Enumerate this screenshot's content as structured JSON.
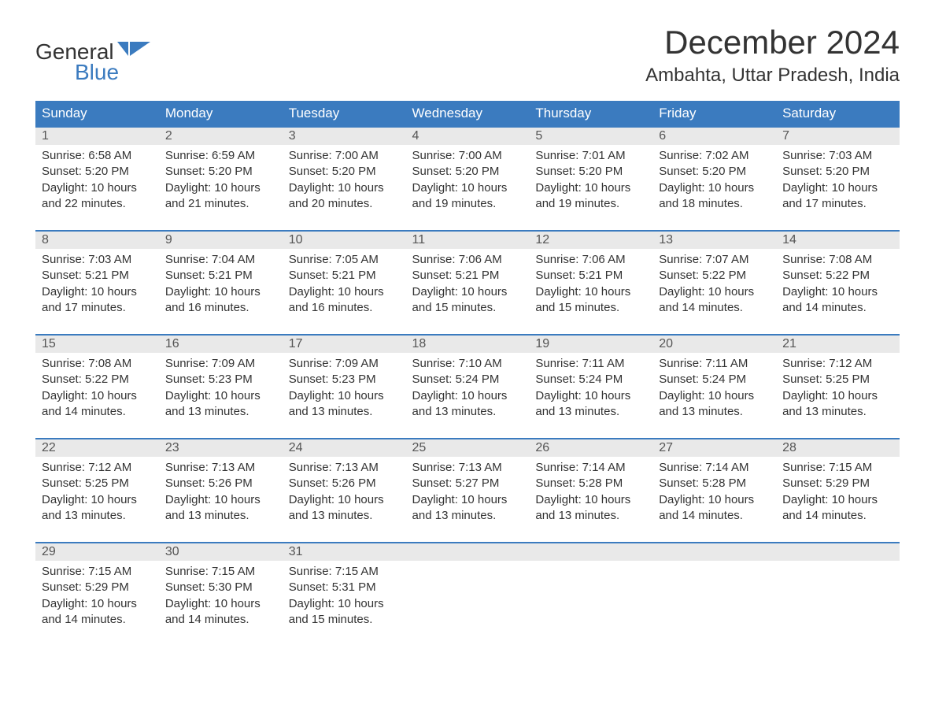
{
  "logo": {
    "word1": "General",
    "word2": "Blue",
    "flag_color": "#3b7bbf",
    "word1_color": "#333333",
    "word2_color": "#3b7bbf"
  },
  "title": "December 2024",
  "location": "Ambahta, Uttar Pradesh, India",
  "colors": {
    "header_bg": "#3b7bbf",
    "header_text": "#ffffff",
    "daynum_bg": "#e9e9e9",
    "daynum_text": "#555555",
    "body_text": "#333333",
    "row_border": "#3b7bbf",
    "page_bg": "#ffffff"
  },
  "typography": {
    "title_fontsize": 42,
    "location_fontsize": 24,
    "header_fontsize": 17,
    "daynum_fontsize": 16,
    "body_fontsize": 15,
    "font_family": "Arial"
  },
  "day_headers": [
    "Sunday",
    "Monday",
    "Tuesday",
    "Wednesday",
    "Thursday",
    "Friday",
    "Saturday"
  ],
  "weeks": [
    [
      {
        "n": "1",
        "sunrise": "Sunrise: 6:58 AM",
        "sunset": "Sunset: 5:20 PM",
        "dl1": "Daylight: 10 hours",
        "dl2": "and 22 minutes."
      },
      {
        "n": "2",
        "sunrise": "Sunrise: 6:59 AM",
        "sunset": "Sunset: 5:20 PM",
        "dl1": "Daylight: 10 hours",
        "dl2": "and 21 minutes."
      },
      {
        "n": "3",
        "sunrise": "Sunrise: 7:00 AM",
        "sunset": "Sunset: 5:20 PM",
        "dl1": "Daylight: 10 hours",
        "dl2": "and 20 minutes."
      },
      {
        "n": "4",
        "sunrise": "Sunrise: 7:00 AM",
        "sunset": "Sunset: 5:20 PM",
        "dl1": "Daylight: 10 hours",
        "dl2": "and 19 minutes."
      },
      {
        "n": "5",
        "sunrise": "Sunrise: 7:01 AM",
        "sunset": "Sunset: 5:20 PM",
        "dl1": "Daylight: 10 hours",
        "dl2": "and 19 minutes."
      },
      {
        "n": "6",
        "sunrise": "Sunrise: 7:02 AM",
        "sunset": "Sunset: 5:20 PM",
        "dl1": "Daylight: 10 hours",
        "dl2": "and 18 minutes."
      },
      {
        "n": "7",
        "sunrise": "Sunrise: 7:03 AM",
        "sunset": "Sunset: 5:20 PM",
        "dl1": "Daylight: 10 hours",
        "dl2": "and 17 minutes."
      }
    ],
    [
      {
        "n": "8",
        "sunrise": "Sunrise: 7:03 AM",
        "sunset": "Sunset: 5:21 PM",
        "dl1": "Daylight: 10 hours",
        "dl2": "and 17 minutes."
      },
      {
        "n": "9",
        "sunrise": "Sunrise: 7:04 AM",
        "sunset": "Sunset: 5:21 PM",
        "dl1": "Daylight: 10 hours",
        "dl2": "and 16 minutes."
      },
      {
        "n": "10",
        "sunrise": "Sunrise: 7:05 AM",
        "sunset": "Sunset: 5:21 PM",
        "dl1": "Daylight: 10 hours",
        "dl2": "and 16 minutes."
      },
      {
        "n": "11",
        "sunrise": "Sunrise: 7:06 AM",
        "sunset": "Sunset: 5:21 PM",
        "dl1": "Daylight: 10 hours",
        "dl2": "and 15 minutes."
      },
      {
        "n": "12",
        "sunrise": "Sunrise: 7:06 AM",
        "sunset": "Sunset: 5:21 PM",
        "dl1": "Daylight: 10 hours",
        "dl2": "and 15 minutes."
      },
      {
        "n": "13",
        "sunrise": "Sunrise: 7:07 AM",
        "sunset": "Sunset: 5:22 PM",
        "dl1": "Daylight: 10 hours",
        "dl2": "and 14 minutes."
      },
      {
        "n": "14",
        "sunrise": "Sunrise: 7:08 AM",
        "sunset": "Sunset: 5:22 PM",
        "dl1": "Daylight: 10 hours",
        "dl2": "and 14 minutes."
      }
    ],
    [
      {
        "n": "15",
        "sunrise": "Sunrise: 7:08 AM",
        "sunset": "Sunset: 5:22 PM",
        "dl1": "Daylight: 10 hours",
        "dl2": "and 14 minutes."
      },
      {
        "n": "16",
        "sunrise": "Sunrise: 7:09 AM",
        "sunset": "Sunset: 5:23 PM",
        "dl1": "Daylight: 10 hours",
        "dl2": "and 13 minutes."
      },
      {
        "n": "17",
        "sunrise": "Sunrise: 7:09 AM",
        "sunset": "Sunset: 5:23 PM",
        "dl1": "Daylight: 10 hours",
        "dl2": "and 13 minutes."
      },
      {
        "n": "18",
        "sunrise": "Sunrise: 7:10 AM",
        "sunset": "Sunset: 5:24 PM",
        "dl1": "Daylight: 10 hours",
        "dl2": "and 13 minutes."
      },
      {
        "n": "19",
        "sunrise": "Sunrise: 7:11 AM",
        "sunset": "Sunset: 5:24 PM",
        "dl1": "Daylight: 10 hours",
        "dl2": "and 13 minutes."
      },
      {
        "n": "20",
        "sunrise": "Sunrise: 7:11 AM",
        "sunset": "Sunset: 5:24 PM",
        "dl1": "Daylight: 10 hours",
        "dl2": "and 13 minutes."
      },
      {
        "n": "21",
        "sunrise": "Sunrise: 7:12 AM",
        "sunset": "Sunset: 5:25 PM",
        "dl1": "Daylight: 10 hours",
        "dl2": "and 13 minutes."
      }
    ],
    [
      {
        "n": "22",
        "sunrise": "Sunrise: 7:12 AM",
        "sunset": "Sunset: 5:25 PM",
        "dl1": "Daylight: 10 hours",
        "dl2": "and 13 minutes."
      },
      {
        "n": "23",
        "sunrise": "Sunrise: 7:13 AM",
        "sunset": "Sunset: 5:26 PM",
        "dl1": "Daylight: 10 hours",
        "dl2": "and 13 minutes."
      },
      {
        "n": "24",
        "sunrise": "Sunrise: 7:13 AM",
        "sunset": "Sunset: 5:26 PM",
        "dl1": "Daylight: 10 hours",
        "dl2": "and 13 minutes."
      },
      {
        "n": "25",
        "sunrise": "Sunrise: 7:13 AM",
        "sunset": "Sunset: 5:27 PM",
        "dl1": "Daylight: 10 hours",
        "dl2": "and 13 minutes."
      },
      {
        "n": "26",
        "sunrise": "Sunrise: 7:14 AM",
        "sunset": "Sunset: 5:28 PM",
        "dl1": "Daylight: 10 hours",
        "dl2": "and 13 minutes."
      },
      {
        "n": "27",
        "sunrise": "Sunrise: 7:14 AM",
        "sunset": "Sunset: 5:28 PM",
        "dl1": "Daylight: 10 hours",
        "dl2": "and 14 minutes."
      },
      {
        "n": "28",
        "sunrise": "Sunrise: 7:15 AM",
        "sunset": "Sunset: 5:29 PM",
        "dl1": "Daylight: 10 hours",
        "dl2": "and 14 minutes."
      }
    ],
    [
      {
        "n": "29",
        "sunrise": "Sunrise: 7:15 AM",
        "sunset": "Sunset: 5:29 PM",
        "dl1": "Daylight: 10 hours",
        "dl2": "and 14 minutes."
      },
      {
        "n": "30",
        "sunrise": "Sunrise: 7:15 AM",
        "sunset": "Sunset: 5:30 PM",
        "dl1": "Daylight: 10 hours",
        "dl2": "and 14 minutes."
      },
      {
        "n": "31",
        "sunrise": "Sunrise: 7:15 AM",
        "sunset": "Sunset: 5:31 PM",
        "dl1": "Daylight: 10 hours",
        "dl2": "and 15 minutes."
      },
      null,
      null,
      null,
      null
    ]
  ]
}
